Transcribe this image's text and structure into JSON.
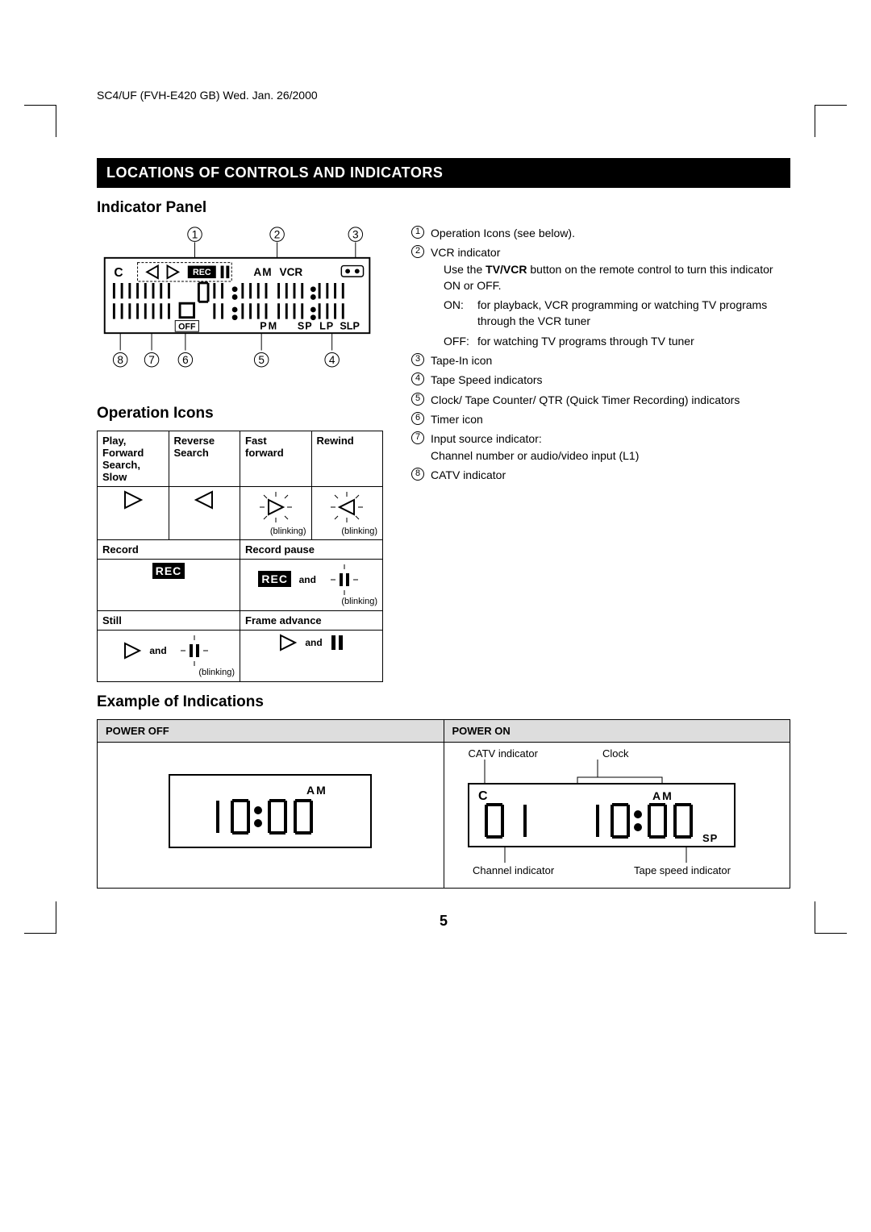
{
  "doc_id": "SC4/UF (FVH-E420 GB) Wed. Jan. 26/2000",
  "section_title": "LOCATIONS OF CONTROLS AND INDICATORS",
  "h_indicator_panel": "Indicator Panel",
  "h_operation_icons": "Operation Icons",
  "h_example": "Example of Indications",
  "panel": {
    "c": "C",
    "am": "AM",
    "vcr": "VCR",
    "off": "OFF",
    "pm": "PM",
    "sp": "SP",
    "lp": "LP",
    "slp": "SLP",
    "rec": "REC"
  },
  "refs": {
    "1": "Operation Icons (see below).",
    "2": {
      "title": "VCR indicator",
      "note": "Use the <b>TV/VCR</b> button on the remote control to turn this indicator ON or OFF.",
      "on": "for playback, VCR programming or watching TV programs through the VCR tuner",
      "off": "for watching TV programs through TV tuner"
    },
    "3": "Tape-In icon",
    "4": "Tape Speed indicators",
    "5": "Clock/ Tape Counter/ QTR (Quick Timer Recording) indicators",
    "6": "Timer icon",
    "7": {
      "title": "Input source indicator:",
      "sub": "Channel number or audio/video input (L1)"
    },
    "8": "CATV indicator"
  },
  "op": {
    "play": "Play, Forward Search, Slow",
    "rev": "Reverse Search",
    "ff": "Fast forward",
    "rew": "Rewind",
    "record": "Record",
    "recpause": "Record pause",
    "still": "Still",
    "frame": "Frame advance",
    "blinking": "(blinking)",
    "and": "and",
    "rec_label": "REC"
  },
  "ex": {
    "power_off": "POWER OFF",
    "power_on": "POWER ON",
    "catv": "CATV indicator",
    "clock": "Clock",
    "c": "C",
    "am": "AM",
    "sp": "SP",
    "ch_ind": "Channel indicator",
    "ts_ind": "Tape speed indicator",
    "time": "10:00",
    "ch": "0 1"
  },
  "page_number": "5",
  "colors": {
    "bg": "#ffffff",
    "fg": "#000000",
    "header_bg": "#dddddd"
  }
}
